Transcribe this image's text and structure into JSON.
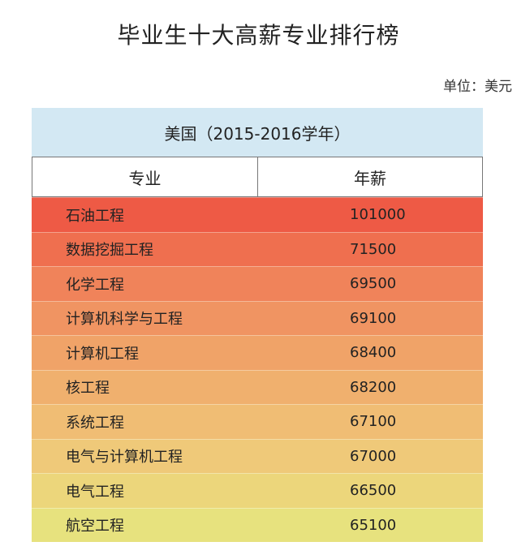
{
  "title": "毕业生十大高薪专业排行榜",
  "unit": "单位：美元",
  "chart_data": {
    "type": "table",
    "caption": "美国（2015-2016学年）",
    "columns": [
      "专业",
      "年薪"
    ],
    "rows": [
      {
        "major": "石油工程",
        "salary": "101000",
        "color": "#ee5a45"
      },
      {
        "major": "数据挖掘工程",
        "salary": "71500",
        "color": "#ef6f4f"
      },
      {
        "major": "化学工程",
        "salary": "69500",
        "color": "#f0835a"
      },
      {
        "major": "计算机科学与工程",
        "salary": "69100",
        "color": "#f09462"
      },
      {
        "major": "计算机工程",
        "salary": "68400",
        "color": "#f0a368"
      },
      {
        "major": "核工程",
        "salary": "68200",
        "color": "#f0b06e"
      },
      {
        "major": "系统工程",
        "salary": "67100",
        "color": "#f0bd74"
      },
      {
        "major": "电气与计算机工程",
        "salary": "67000",
        "color": "#efc979"
      },
      {
        "major": "电气工程",
        "salary": "66500",
        "color": "#ecd67b"
      },
      {
        "major": "航空工程",
        "salary": "65100",
        "color": "#e7e27e"
      }
    ]
  }
}
